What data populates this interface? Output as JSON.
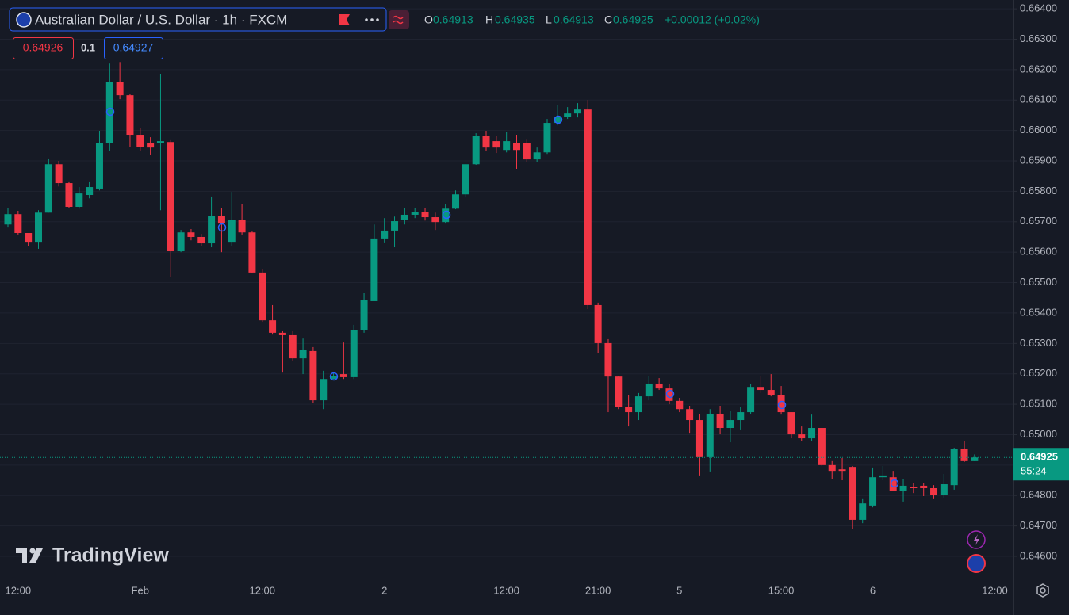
{
  "chart_data": {
    "type": "candlestick",
    "title": "Australian Dollar / U.S. Dollar · 1h · FXCM",
    "legend": {
      "open_label": "O",
      "open": 0.64913,
      "high_label": "H",
      "high": 0.64935,
      "low_label": "L",
      "low": 0.64913,
      "close_label": "C",
      "close": 0.64925,
      "change": "+0.00012 (+0.02%)"
    },
    "quote": {
      "sell": 0.64926,
      "spread": 0.1,
      "buy": 0.64927
    },
    "price_tag": {
      "price": 0.64925,
      "countdown": "55:24"
    },
    "watermark": "TradingView",
    "up_color": "#089981",
    "down_color": "#f23645",
    "grid": true,
    "categories": [
      null,
      "12:00",
      null,
      null,
      null,
      null,
      null,
      null,
      null,
      null,
      null,
      null,
      null,
      "Feb",
      null,
      null,
      null,
      null,
      null,
      null,
      null,
      null,
      null,
      null,
      null,
      "12:00",
      null,
      null,
      null,
      null,
      null,
      null,
      null,
      null,
      null,
      null,
      null,
      "2",
      null,
      null,
      null,
      null,
      null,
      null,
      null,
      null,
      null,
      null,
      null,
      "12:00",
      null,
      null,
      null,
      null,
      null,
      null,
      null,
      null,
      "21:00",
      null,
      null,
      null,
      null,
      null,
      null,
      null,
      "5",
      null,
      null,
      null,
      null,
      null,
      null,
      null,
      null,
      null,
      "15:00",
      null,
      null,
      null,
      null,
      null,
      null,
      null,
      null,
      "6",
      null,
      null,
      null,
      null,
      null,
      null,
      null,
      null,
      null,
      null,
      null,
      "12:00"
    ],
    "open": [
      0.65691,
      0.65725,
      0.65663,
      0.65634,
      0.6573,
      0.65889,
      0.65827,
      0.65749,
      0.65788,
      0.65809,
      0.6596,
      0.6616,
      0.66116,
      0.65986,
      0.6596,
      0.6596,
      0.65962,
      0.65603,
      0.65665,
      0.6565,
      0.65629,
      0.6572,
      0.65634,
      0.65707,
      0.65665,
      0.65533,
      0.65376,
      0.65335,
      0.65327,
      0.65251,
      0.65275,
      0.65113,
      0.65183,
      0.65199,
      0.65189,
      0.65345,
      0.65439,
      0.65645,
      0.65671,
      0.65707,
      0.65723,
      0.65733,
      0.65715,
      0.65699,
      0.65743,
      0.6579,
      0.65889,
      0.65983,
      0.65965,
      0.65936,
      0.6596,
      0.6596,
      0.65905,
      0.65928,
      0.66025,
      0.66046,
      0.66056,
      0.66069,
      0.65426,
      0.65301,
      0.65191,
      0.6509,
      0.65074,
      0.65126,
      0.65168,
      0.65152,
      0.65111,
      0.65084,
      0.65048,
      0.64926,
      0.65069,
      0.65022,
      0.65048,
      0.65074,
      0.65157,
      0.65147,
      0.65131,
      0.65074,
      0.65001,
      0.64988,
      0.65022,
      0.649,
      0.64886,
      0.64894,
      0.6472,
      0.64767,
      0.6486,
      0.6486,
      0.64816,
      0.64829,
      0.64832,
      0.64824,
      0.64803,
      0.64834,
      0.64952,
      0.64913,
      null,
      null
    ],
    "high": [
      0.65746,
      0.65736,
      0.65663,
      0.65738,
      0.65908,
      0.659,
      0.6583,
      0.65814,
      0.6583,
      0.65999,
      0.6622,
      0.66225,
      0.66121,
      0.66007,
      0.65978,
      0.66186,
      0.65968,
      0.65673,
      0.65676,
      0.6566,
      0.65783,
      0.65746,
      0.65798,
      0.65757,
      0.65668,
      0.65543,
      0.65426,
      0.6534,
      0.6534,
      0.65316,
      0.65288,
      0.6521,
      0.65204,
      0.65303,
      0.65361,
      0.65465,
      0.65691,
      0.65712,
      0.65717,
      0.65746,
      0.65746,
      0.65746,
      0.6573,
      0.65757,
      0.65803,
      0.65889,
      0.65991,
      0.65999,
      0.65981,
      0.65994,
      0.65986,
      0.6597,
      0.65944,
      0.66038,
      0.66085,
      0.66077,
      0.6609,
      0.661,
      0.65434,
      0.65314,
      0.65194,
      0.65131,
      0.65137,
      0.65194,
      0.65186,
      0.65168,
      0.65121,
      0.65095,
      0.65069,
      0.65084,
      0.65095,
      0.65079,
      0.6509,
      0.65168,
      0.65194,
      0.65199,
      0.6516,
      0.65074,
      0.65027,
      0.65066,
      0.65022,
      0.64913,
      0.64923,
      0.64897,
      0.64788,
      0.64892,
      0.64897,
      0.64881,
      0.64853,
      0.6484,
      0.6484,
      0.64834,
      0.64871,
      0.64957,
      0.6498,
      0.64935,
      null,
      null
    ],
    "low": [
      0.65681,
      0.65658,
      0.65621,
      0.65611,
      0.6573,
      0.65816,
      0.65746,
      0.65743,
      0.65777,
      0.65803,
      0.65934,
      0.66103,
      0.65947,
      0.65934,
      0.65921,
      0.65738,
      0.65517,
      0.656,
      0.65639,
      0.65621,
      0.65616,
      0.656,
      0.65621,
      0.65658,
      0.6553,
      0.65371,
      0.65329,
      0.65204,
      0.65243,
      0.65199,
      0.65105,
      0.65084,
      0.65183,
      0.65183,
      0.65183,
      0.65335,
      0.65439,
      0.65632,
      0.65616,
      0.65691,
      0.65712,
      0.65704,
      0.65673,
      0.65694,
      0.65741,
      0.6578,
      0.65887,
      0.65934,
      0.65926,
      0.65928,
      0.65874,
      0.65895,
      0.65895,
      0.65923,
      0.66017,
      0.66038,
      0.66043,
      0.65413,
      0.65269,
      0.65074,
      0.65084,
      0.65027,
      0.65048,
      0.65113,
      0.65147,
      0.651,
      0.65074,
      0.65006,
      0.64866,
      0.64879,
      0.65001,
      0.64975,
      0.65017,
      0.65069,
      0.65137,
      0.65126,
      0.65066,
      0.64988,
      0.6498,
      0.6498,
      0.64897,
      0.64855,
      0.6485,
      0.64689,
      0.64709,
      0.64761,
      0.6485,
      0.64814,
      0.6478,
      0.64808,
      0.64798,
      0.64788,
      0.64793,
      0.64819,
      0.6491,
      0.64913,
      null,
      null
    ],
    "close": [
      0.65725,
      0.65663,
      0.65634,
      0.6573,
      0.65889,
      0.65827,
      0.65749,
      0.65793,
      0.65814,
      0.6596,
      0.6616,
      0.66116,
      0.65986,
      0.65947,
      0.65944,
      0.65965,
      0.65603,
      0.65665,
      0.6565,
      0.65629,
      0.6572,
      0.65694,
      0.65707,
      0.65665,
      0.65533,
      0.65376,
      0.65335,
      0.65327,
      0.65251,
      0.6528,
      0.65113,
      0.65183,
      0.65194,
      0.65189,
      0.65345,
      0.65444,
      0.65645,
      0.65671,
      0.65702,
      0.65723,
      0.65733,
      0.65715,
      0.65699,
      0.65743,
      0.6579,
      0.65889,
      0.65983,
      0.65944,
      0.65944,
      0.65965,
      0.65936,
      0.65905,
      0.65928,
      0.66025,
      0.66046,
      0.66056,
      0.66069,
      0.65426,
      0.65301,
      0.65191,
      0.6509,
      0.65074,
      0.65126,
      0.65168,
      0.65152,
      0.65111,
      0.65084,
      0.65048,
      0.64926,
      0.65069,
      0.65022,
      0.65048,
      0.65074,
      0.65157,
      0.65147,
      0.65131,
      0.65074,
      0.65001,
      0.64988,
      0.65022,
      0.649,
      0.64881,
      0.64881,
      0.6472,
      0.64774,
      0.6486,
      0.64866,
      0.64816,
      0.64832,
      0.64824,
      0.64824,
      0.64803,
      0.64837,
      0.64952,
      0.64913,
      0.64925,
      null,
      null
    ],
    "ylim": [
      0.64527,
      0.66429
    ],
    "yticks": [
      {
        "value": 0.664,
        "label": "0.66400"
      },
      {
        "value": 0.663,
        "label": "0.66300"
      },
      {
        "value": 0.662,
        "label": "0.66200"
      },
      {
        "value": 0.661,
        "label": "0.66100"
      },
      {
        "value": 0.66,
        "label": "0.66000"
      },
      {
        "value": 0.659,
        "label": "0.65900"
      },
      {
        "value": 0.658,
        "label": "0.65800"
      },
      {
        "value": 0.657,
        "label": "0.65700"
      },
      {
        "value": 0.656,
        "label": "0.65600"
      },
      {
        "value": 0.655,
        "label": "0.65500"
      },
      {
        "value": 0.654,
        "label": "0.65400"
      },
      {
        "value": 0.653,
        "label": "0.65300"
      },
      {
        "value": 0.652,
        "label": "0.65200"
      },
      {
        "value": 0.651,
        "label": "0.65100"
      },
      {
        "value": 0.65,
        "label": "0.65000"
      },
      {
        "value": 0.649,
        "label": "0.64900"
      },
      {
        "value": 0.648,
        "label": "0.64800"
      },
      {
        "value": 0.647,
        "label": "0.64700"
      },
      {
        "value": 0.646,
        "label": "0.64600"
      }
    ]
  }
}
